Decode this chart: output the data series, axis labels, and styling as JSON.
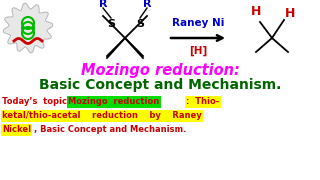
{
  "bg_color": "#ffffff",
  "title_line1": "Mozingo reduction:",
  "title_line2": "Basic Concept and Mechanism.",
  "title_line1_color": "#ff00ff",
  "title_line2_color": "#006600",
  "raney_ni_text": "Raney Ni",
  "raney_ni_color": "#0000cc",
  "H_reagent_text": "[H]",
  "H_reagent_color": "#cc0000",
  "R_color": "#0000cc",
  "S_color": "#000000",
  "arrow_color": "#000000",
  "product_H_color": "#cc0000",
  "bottom_prefix": "Today’s  topic: ",
  "bottom_prefix_color": "#cc0000",
  "bottom_green_text": "Mozingo  reduction",
  "bottom_green_bg": "#00dd00",
  "bottom_colon_thio": ":  Thio-",
  "bottom_yellow_line2": "ketal/thio-acetal    reduction    by    Raney",
  "bottom_yellow_nickel": "Nickel",
  "bottom_yellow_bg": "#ffff00",
  "bottom_suffix": ", Basic Concept and Mechanism.",
  "bottom_text_color": "#cc0000",
  "logo_outer_color": "#cccccc",
  "logo_inner_color": "#00bb00",
  "logo_wave_color": "#cc0000"
}
